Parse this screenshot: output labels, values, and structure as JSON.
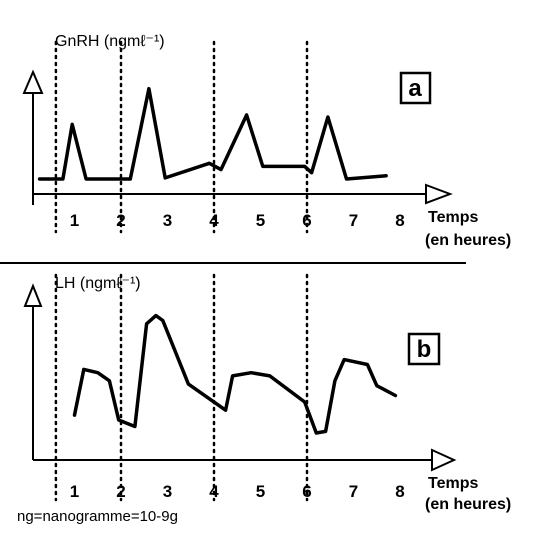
{
  "chart_data": [
    {
      "type": "line",
      "panel_label": "a",
      "ylabel": "GnRH (ngmℓ⁻¹)",
      "xlabel_line1": "Temps",
      "xlabel_line2": "(en heures)",
      "x_ticks": [
        1,
        2,
        3,
        4,
        5,
        6,
        7,
        8
      ],
      "xlim": [
        0,
        8.5
      ],
      "y_ticks_shown": false,
      "vertical_dotted_lines_at_x": [
        0.6,
        2,
        4,
        6
      ],
      "series": [
        {
          "x": [
            0.25,
            0.75,
            0.95,
            1.25,
            2.2,
            2.6,
            2.95,
            3.9,
            4.15,
            4.7,
            5.05,
            5.95,
            6.1,
            6.45,
            6.85,
            7.7
          ],
          "y": [
            1,
            1,
            6.2,
            1,
            1,
            9.6,
            1.1,
            2.5,
            1.9,
            7.1,
            2.2,
            2.2,
            1.6,
            6.9,
            1,
            1.3
          ]
        }
      ]
    },
    {
      "type": "line",
      "panel_label": "b",
      "ylabel": "LH (ngmℓ⁻¹)",
      "xlabel_line1": "Temps",
      "xlabel_line2": "(en heures)",
      "x_ticks": [
        1,
        2,
        3,
        4,
        5,
        6,
        7,
        8
      ],
      "xlim": [
        0,
        8.5
      ],
      "y_ticks_shown": false,
      "vertical_dotted_lines_at_x": [
        0.6,
        2,
        4,
        6
      ],
      "series": [
        {
          "x": [
            1.0,
            1.2,
            1.5,
            1.75,
            1.95,
            2.3,
            2.55,
            2.75,
            2.9,
            3.45,
            4.25,
            4.4,
            4.8,
            5.2,
            5.95,
            6.2,
            6.4,
            6.6,
            6.8,
            7.3,
            7.5,
            7.9
          ],
          "y": [
            2.5,
            5.3,
            5.1,
            4.6,
            2.2,
            1.8,
            8.1,
            8.6,
            8.3,
            4.4,
            2.8,
            4.9,
            5.1,
            4.9,
            3.3,
            1.4,
            1.5,
            4.6,
            5.9,
            5.6,
            4.3,
            3.7
          ]
        }
      ]
    }
  ],
  "footnote": "ng=nanogramme=10-9g",
  "colors": {
    "line": "#000000",
    "background": "#ffffff",
    "separator": "#000000"
  }
}
